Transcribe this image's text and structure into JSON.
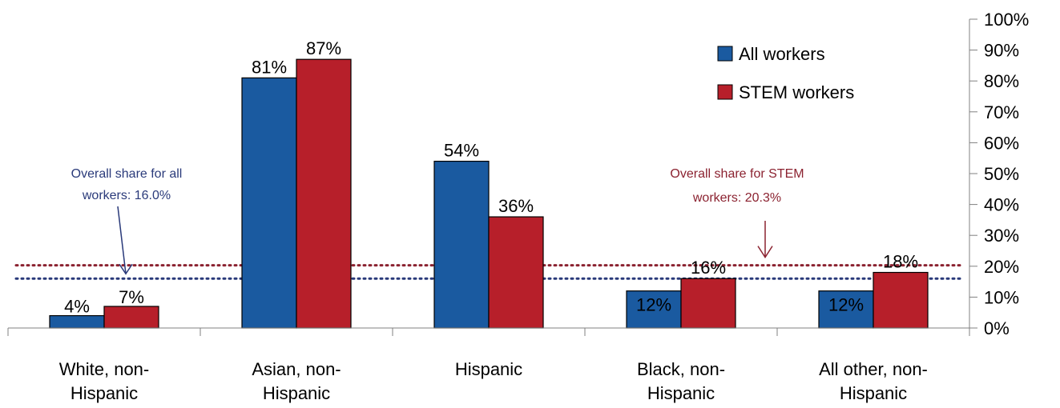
{
  "chart_data": {
    "type": "bar",
    "categories": [
      [
        "White, non-",
        "Hispanic"
      ],
      [
        "Asian, non-",
        "Hispanic"
      ],
      [
        "Hispanic"
      ],
      [
        "Black, non-",
        "Hispanic"
      ],
      [
        "All other, non-",
        "Hispanic"
      ]
    ],
    "series": [
      {
        "name": "All workers",
        "color": "#1a5aa0",
        "values": [
          4,
          81,
          54,
          12,
          12
        ],
        "labels": [
          "4%",
          "81%",
          "54%",
          "12%",
          "12%"
        ]
      },
      {
        "name": "STEM workers",
        "color": "#b71f2a",
        "values": [
          7,
          87,
          36,
          16,
          18
        ],
        "labels": [
          "7%",
          "87%",
          "36%",
          "16%",
          "18%"
        ]
      }
    ],
    "ylim": [
      0,
      100
    ],
    "yticks": [
      "0%",
      "10%",
      "20%",
      "30%",
      "40%",
      "50%",
      "60%",
      "70%",
      "80%",
      "90%",
      "100%"
    ],
    "y_axis_side": "right",
    "legend_position": "top-right",
    "reference_lines": [
      {
        "value": 16.0,
        "color": "#2a3a7a",
        "text": [
          "Overall share for all",
          "workers:  16.0%"
        ]
      },
      {
        "value": 20.3,
        "color": "#8b2230",
        "text": [
          "Overall share for STEM",
          "workers: 20.3%"
        ]
      }
    ]
  }
}
